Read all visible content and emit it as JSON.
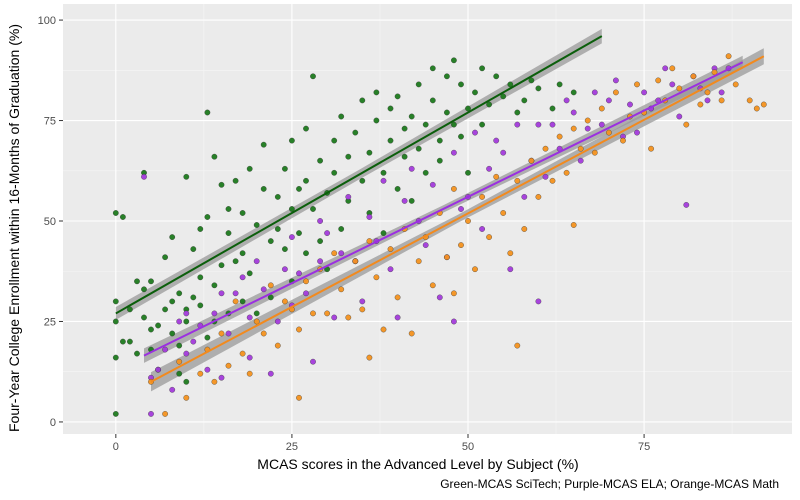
{
  "chart_data": {
    "type": "scatter",
    "xlabel": "MCAS scores in the Advanced Level by Subject (%)",
    "ylabel": "Four-Year College Enrollment within 16-Months of Graduation (%)",
    "caption": "Green-MCAS SciTech; Purple-MCAS ELA; Orange-MCAS Math",
    "xlim": [
      -7.5,
      96
    ],
    "ylim": [
      -3,
      104
    ],
    "xticks": [
      0,
      25,
      50,
      75
    ],
    "yticks": [
      0,
      25,
      50,
      75,
      100
    ],
    "grid": true,
    "background": "#ebebeb",
    "series": [
      {
        "color": "#1e7a1e",
        "line_color": "#0b5e0b",
        "fit": {
          "x0": 0,
          "y0": 27,
          "x1": 69,
          "y1": 96
        },
        "ci_half": [
          1.6,
          1.2,
          1.8
        ],
        "points": [
          [
            0,
            2
          ],
          [
            0,
            16
          ],
          [
            0,
            25
          ],
          [
            0,
            30
          ],
          [
            0,
            52
          ],
          [
            1,
            20
          ],
          [
            1,
            51
          ],
          [
            2,
            28
          ],
          [
            2,
            20
          ],
          [
            3,
            17
          ],
          [
            3,
            35
          ],
          [
            4,
            26
          ],
          [
            4,
            33
          ],
          [
            4,
            62
          ],
          [
            5,
            23
          ],
          [
            5,
            18
          ],
          [
            5,
            35
          ],
          [
            6,
            13
          ],
          [
            6,
            24
          ],
          [
            7,
            28
          ],
          [
            7,
            41
          ],
          [
            8,
            22
          ],
          [
            8,
            30
          ],
          [
            8,
            46
          ],
          [
            9,
            12
          ],
          [
            9,
            19
          ],
          [
            9,
            32
          ],
          [
            10,
            10
          ],
          [
            10,
            25
          ],
          [
            10,
            28
          ],
          [
            10,
            61
          ],
          [
            11,
            31
          ],
          [
            11,
            43
          ],
          [
            12,
            48
          ],
          [
            12,
            29
          ],
          [
            12,
            36
          ],
          [
            13,
            77
          ],
          [
            13,
            51
          ],
          [
            13,
            21
          ],
          [
            14,
            25
          ],
          [
            14,
            34
          ],
          [
            14,
            66
          ],
          [
            15,
            39
          ],
          [
            15,
            59
          ],
          [
            16,
            27
          ],
          [
            16,
            47
          ],
          [
            16,
            53
          ],
          [
            17,
            40
          ],
          [
            17,
            60
          ],
          [
            18,
            30
          ],
          [
            18,
            52
          ],
          [
            18,
            42
          ],
          [
            19,
            63
          ],
          [
            19,
            37
          ],
          [
            20,
            49
          ],
          [
            20,
            27
          ],
          [
            21,
            58
          ],
          [
            21,
            69
          ],
          [
            22,
            45
          ],
          [
            22,
            31
          ],
          [
            23,
            56
          ],
          [
            23,
            48
          ],
          [
            24,
            43
          ],
          [
            24,
            63
          ],
          [
            25,
            53
          ],
          [
            25,
            70
          ],
          [
            25,
            35
          ],
          [
            26,
            47
          ],
          [
            26,
            58
          ],
          [
            27,
            42
          ],
          [
            27,
            60
          ],
          [
            27,
            73
          ],
          [
            28,
            53
          ],
          [
            28,
            86
          ],
          [
            29,
            65
          ],
          [
            29,
            45
          ],
          [
            30,
            57
          ],
          [
            30,
            38
          ],
          [
            31,
            70
          ],
          [
            31,
            62
          ],
          [
            32,
            48
          ],
          [
            32,
            76
          ],
          [
            33,
            66
          ],
          [
            33,
            55
          ],
          [
            34,
            40
          ],
          [
            34,
            72
          ],
          [
            35,
            60
          ],
          [
            35,
            80
          ],
          [
            36,
            67
          ],
          [
            36,
            52
          ],
          [
            37,
            75
          ],
          [
            37,
            82
          ],
          [
            38,
            62
          ],
          [
            38,
            47
          ],
          [
            39,
            70
          ],
          [
            39,
            78
          ],
          [
            40,
            58
          ],
          [
            40,
            81
          ],
          [
            41,
            66
          ],
          [
            41,
            73
          ],
          [
            42,
            76
          ],
          [
            42,
            55
          ],
          [
            43,
            84
          ],
          [
            43,
            68
          ],
          [
            44,
            74
          ],
          [
            44,
            62
          ],
          [
            45,
            80
          ],
          [
            45,
            88
          ],
          [
            46,
            70
          ],
          [
            46,
            65
          ],
          [
            47,
            86
          ],
          [
            47,
            77
          ],
          [
            48,
            74
          ],
          [
            48,
            90
          ],
          [
            49,
            71
          ],
          [
            49,
            84
          ],
          [
            50,
            62
          ],
          [
            50,
            78
          ],
          [
            51,
            82
          ],
          [
            52,
            74
          ],
          [
            52,
            88
          ],
          [
            53,
            79
          ],
          [
            54,
            86
          ],
          [
            55,
            81
          ],
          [
            56,
            84
          ],
          [
            57,
            77
          ],
          [
            58,
            80
          ],
          [
            59,
            85
          ],
          [
            60,
            83
          ],
          [
            62,
            78
          ],
          [
            63,
            84
          ],
          [
            65,
            82
          ]
        ]
      },
      {
        "color": "#a33bdb",
        "line_color": "#9b30e0",
        "fit": {
          "x0": 4,
          "y0": 16.5,
          "x1": 89,
          "y1": 89.5
        },
        "ci_half": [
          1.8,
          0.9,
          1.6
        ],
        "points": [
          [
            4,
            61
          ],
          [
            5,
            2
          ],
          [
            5,
            11
          ],
          [
            6,
            13
          ],
          [
            7,
            18
          ],
          [
            8,
            8
          ],
          [
            9,
            25
          ],
          [
            10,
            17
          ],
          [
            10,
            27
          ],
          [
            11,
            20
          ],
          [
            12,
            24
          ],
          [
            13,
            13
          ],
          [
            14,
            27
          ],
          [
            15,
            32
          ],
          [
            15,
            11
          ],
          [
            16,
            22
          ],
          [
            17,
            32
          ],
          [
            18,
            36
          ],
          [
            19,
            26
          ],
          [
            19,
            16
          ],
          [
            20,
            40
          ],
          [
            21,
            33
          ],
          [
            22,
            12
          ],
          [
            23,
            25
          ],
          [
            24,
            38
          ],
          [
            25,
            29
          ],
          [
            25,
            46
          ],
          [
            26,
            37
          ],
          [
            27,
            32
          ],
          [
            28,
            15
          ],
          [
            29,
            40
          ],
          [
            29,
            50
          ],
          [
            30,
            47
          ],
          [
            31,
            26
          ],
          [
            32,
            42
          ],
          [
            33,
            56
          ],
          [
            34,
            40
          ],
          [
            35,
            30
          ],
          [
            36,
            51
          ],
          [
            37,
            45
          ],
          [
            38,
            60
          ],
          [
            39,
            38
          ],
          [
            40,
            26
          ],
          [
            41,
            55
          ],
          [
            42,
            63
          ],
          [
            43,
            50
          ],
          [
            44,
            44
          ],
          [
            45,
            59
          ],
          [
            46,
            31
          ],
          [
            47,
            41
          ],
          [
            48,
            67
          ],
          [
            48,
            25
          ],
          [
            49,
            53
          ],
          [
            50,
            56
          ],
          [
            51,
            72
          ],
          [
            52,
            48
          ],
          [
            53,
            63
          ],
          [
            54,
            70
          ],
          [
            55,
            67
          ],
          [
            56,
            38
          ],
          [
            57,
            74
          ],
          [
            58,
            56
          ],
          [
            59,
            65
          ],
          [
            60,
            74
          ],
          [
            60,
            30
          ],
          [
            61,
            61
          ],
          [
            62,
            74
          ],
          [
            63,
            68
          ],
          [
            64,
            80
          ],
          [
            65,
            77
          ],
          [
            66,
            65
          ],
          [
            67,
            73
          ],
          [
            68,
            82
          ],
          [
            69,
            74
          ],
          [
            70,
            80
          ],
          [
            71,
            85
          ],
          [
            72,
            71
          ],
          [
            73,
            79
          ],
          [
            74,
            72
          ],
          [
            75,
            82
          ],
          [
            76,
            78
          ],
          [
            77,
            80
          ],
          [
            78,
            88
          ],
          [
            79,
            84
          ],
          [
            80,
            76
          ],
          [
            81,
            54
          ],
          [
            82,
            86
          ],
          [
            83,
            83
          ],
          [
            84,
            80
          ],
          [
            85,
            88
          ],
          [
            86,
            82
          ],
          [
            87,
            88
          ]
        ]
      },
      {
        "color": "#f4921f",
        "line_color": "#f28a1e",
        "fit": {
          "x0": 5,
          "y0": 10,
          "x1": 92,
          "y1": 91
        },
        "ci_half": [
          2.4,
          1.0,
          2.0
        ],
        "points": [
          [
            5,
            10
          ],
          [
            7,
            2
          ],
          [
            9,
            15
          ],
          [
            10,
            6
          ],
          [
            12,
            12
          ],
          [
            13,
            18
          ],
          [
            14,
            10
          ],
          [
            15,
            22
          ],
          [
            16,
            14
          ],
          [
            17,
            30
          ],
          [
            18,
            17
          ],
          [
            19,
            12
          ],
          [
            20,
            25
          ],
          [
            21,
            22
          ],
          [
            22,
            34
          ],
          [
            23,
            19
          ],
          [
            24,
            30
          ],
          [
            25,
            28
          ],
          [
            26,
            6
          ],
          [
            26,
            23
          ],
          [
            27,
            35
          ],
          [
            28,
            27
          ],
          [
            29,
            38
          ],
          [
            30,
            27
          ],
          [
            31,
            42
          ],
          [
            32,
            33
          ],
          [
            33,
            26
          ],
          [
            34,
            40
          ],
          [
            35,
            28
          ],
          [
            36,
            45
          ],
          [
            36,
            16
          ],
          [
            37,
            36
          ],
          [
            38,
            23
          ],
          [
            39,
            43
          ],
          [
            40,
            31
          ],
          [
            41,
            48
          ],
          [
            42,
            22
          ],
          [
            43,
            40
          ],
          [
            44,
            46
          ],
          [
            45,
            34
          ],
          [
            46,
            52
          ],
          [
            47,
            41
          ],
          [
            48,
            58
          ],
          [
            48,
            32
          ],
          [
            49,
            44
          ],
          [
            50,
            50
          ],
          [
            51,
            38
          ],
          [
            52,
            56
          ],
          [
            53,
            46
          ],
          [
            54,
            61
          ],
          [
            55,
            52
          ],
          [
            56,
            42
          ],
          [
            57,
            60
          ],
          [
            57,
            19
          ],
          [
            58,
            48
          ],
          [
            59,
            65
          ],
          [
            60,
            56
          ],
          [
            61,
            68
          ],
          [
            62,
            60
          ],
          [
            63,
            71
          ],
          [
            64,
            62
          ],
          [
            65,
            73
          ],
          [
            65,
            49
          ],
          [
            66,
            68
          ],
          [
            67,
            75
          ],
          [
            68,
            67
          ],
          [
            69,
            78
          ],
          [
            70,
            72
          ],
          [
            71,
            82
          ],
          [
            72,
            70
          ],
          [
            73,
            76
          ],
          [
            74,
            84
          ],
          [
            75,
            77
          ],
          [
            76,
            68
          ],
          [
            77,
            85
          ],
          [
            78,
            80
          ],
          [
            79,
            88
          ],
          [
            80,
            83
          ],
          [
            81,
            74
          ],
          [
            82,
            86
          ],
          [
            83,
            79
          ],
          [
            84,
            82
          ],
          [
            85,
            87
          ],
          [
            86,
            80
          ],
          [
            87,
            91
          ],
          [
            88,
            84
          ],
          [
            90,
            80
          ],
          [
            91,
            78
          ],
          [
            92,
            79
          ]
        ]
      }
    ]
  }
}
